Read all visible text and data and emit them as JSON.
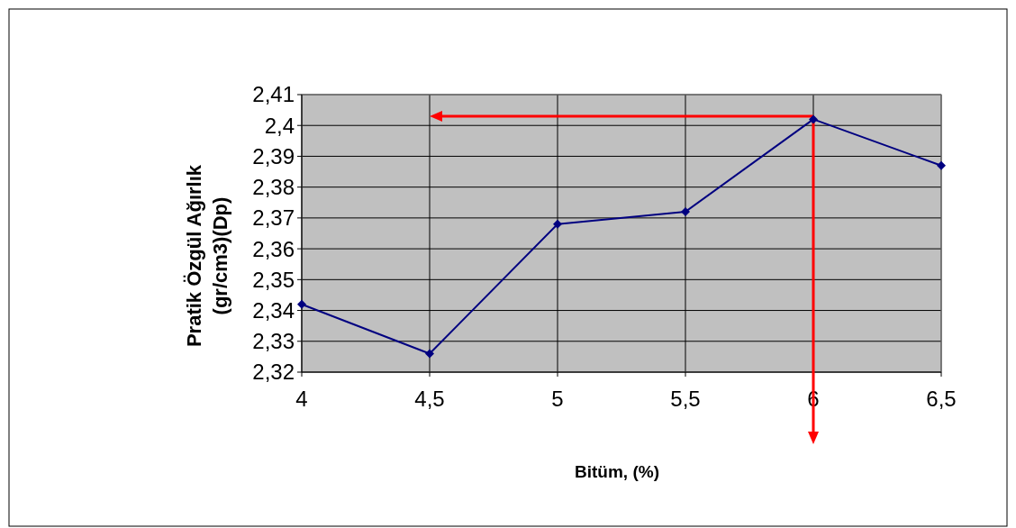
{
  "chart_data": {
    "type": "line",
    "xlabel": "Bitüm, (%)",
    "ylabel": "Pratik Özgül Ağırlık\n(gr/cm3)(Dp)",
    "x": [
      4,
      4.5,
      5,
      5.5,
      6,
      6.5
    ],
    "series": [
      {
        "color": "#000080",
        "values": [
          2.342,
          2.326,
          2.368,
          2.372,
          2.402,
          2.387
        ]
      }
    ],
    "xlim": [
      4,
      6.5
    ],
    "xticks": [
      {
        "value": 4,
        "label": "4"
      },
      {
        "value": 4.5,
        "label": "4,5"
      },
      {
        "value": 5,
        "label": "5"
      },
      {
        "value": 5.5,
        "label": "5,5"
      },
      {
        "value": 6,
        "label": "6"
      },
      {
        "value": 6.5,
        "label": "6,5"
      }
    ],
    "ylim": [
      2.32,
      2.41
    ],
    "yticks": [
      {
        "value": 2.32,
        "label": "2,32"
      },
      {
        "value": 2.33,
        "label": "2,33"
      },
      {
        "value": 2.34,
        "label": "2,34"
      },
      {
        "value": 2.35,
        "label": "2,35"
      },
      {
        "value": 2.36,
        "label": "2,36"
      },
      {
        "value": 2.37,
        "label": "2,37"
      },
      {
        "value": 2.38,
        "label": "2,38"
      },
      {
        "value": 2.39,
        "label": "2,39"
      },
      {
        "value": 2.4,
        "label": "2,4"
      },
      {
        "value": 2.41,
        "label": "2,41"
      }
    ],
    "ref_lines": [
      {
        "axis": "x",
        "value": 6,
        "color": "#ff0000"
      },
      {
        "axis": "y",
        "value": 2.403,
        "color": "#ff0000"
      }
    ],
    "grid": true,
    "marker": "diamond"
  }
}
